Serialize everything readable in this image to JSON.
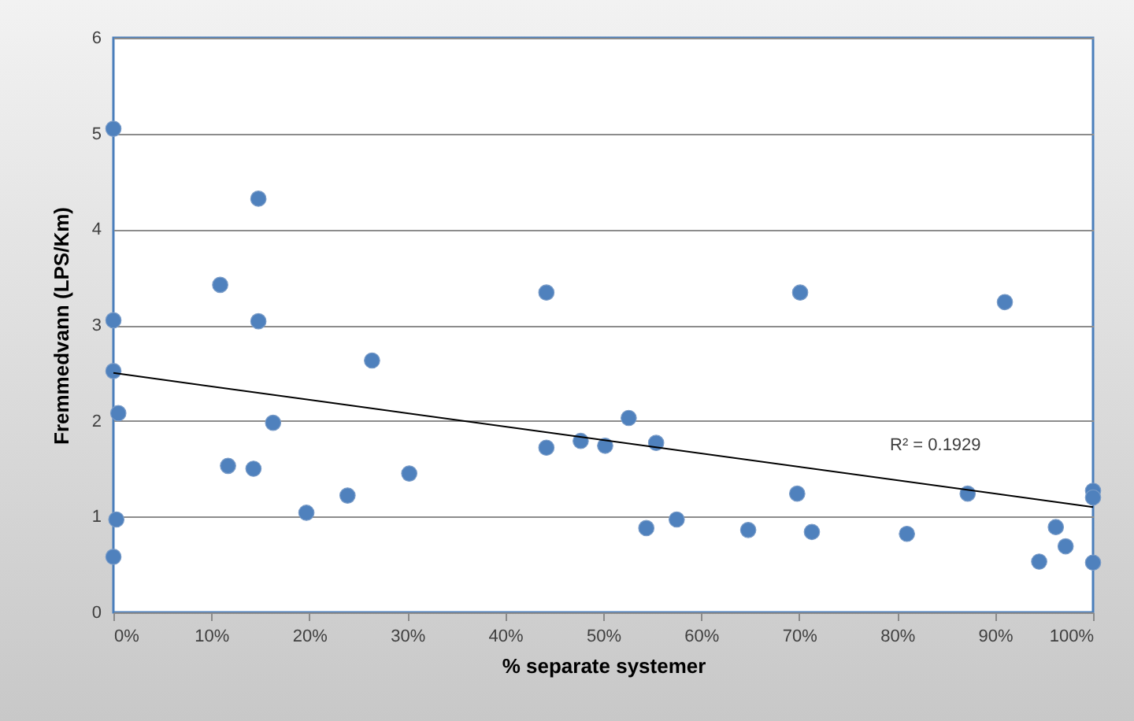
{
  "chart_data": {
    "type": "scatter",
    "xlabel": "% separate systemer",
    "ylabel": "Fremmedvann (LPS/Km)",
    "xlim": [
      0,
      100
    ],
    "ylim": [
      0,
      6
    ],
    "xticks": [
      {
        "value": 0,
        "label": "0%"
      },
      {
        "value": 10,
        "label": "10%"
      },
      {
        "value": 20,
        "label": "20%"
      },
      {
        "value": 30,
        "label": "30%"
      },
      {
        "value": 40,
        "label": "40%"
      },
      {
        "value": 50,
        "label": "50%"
      },
      {
        "value": 60,
        "label": "60%"
      },
      {
        "value": 70,
        "label": "70%"
      },
      {
        "value": 80,
        "label": "80%"
      },
      {
        "value": 90,
        "label": "90%"
      },
      {
        "value": 100,
        "label": "100%"
      }
    ],
    "yticks": [
      0,
      1,
      2,
      3,
      4,
      5,
      6
    ],
    "grid": "y",
    "series": [
      {
        "marker": "circle",
        "color": "#4f81bd",
        "x": [
          0,
          0,
          0,
          0.5,
          0.3,
          0,
          10.9,
          11.7,
          14.3,
          14.8,
          14.8,
          16.3,
          19.7,
          23.9,
          30.2,
          26.4,
          44.2,
          44.2,
          47.7,
          50.2,
          52.6,
          55.4,
          54.4,
          57.5,
          64.8,
          69.8,
          71.3,
          70.1,
          81.0,
          87.2,
          91.0,
          94.5,
          96.2,
          97.2,
          100,
          100,
          100
        ],
        "values": [
          5.05,
          3.05,
          2.52,
          2.08,
          0.97,
          0.58,
          3.42,
          1.53,
          1.5,
          4.32,
          3.04,
          1.98,
          1.04,
          1.22,
          1.45,
          2.63,
          3.34,
          1.72,
          1.79,
          1.74,
          2.03,
          1.77,
          0.88,
          0.97,
          0.86,
          1.24,
          0.84,
          3.34,
          0.82,
          1.24,
          3.24,
          0.53,
          0.89,
          0.69,
          1.27,
          1.2,
          0.52
        ]
      },
      {
        "type": "line",
        "marker": "none",
        "color": "#000000",
        "x": [
          0,
          100
        ],
        "values": [
          2.5,
          1.1
        ]
      }
    ],
    "annotations": [
      "R² = 0.1929"
    ]
  }
}
